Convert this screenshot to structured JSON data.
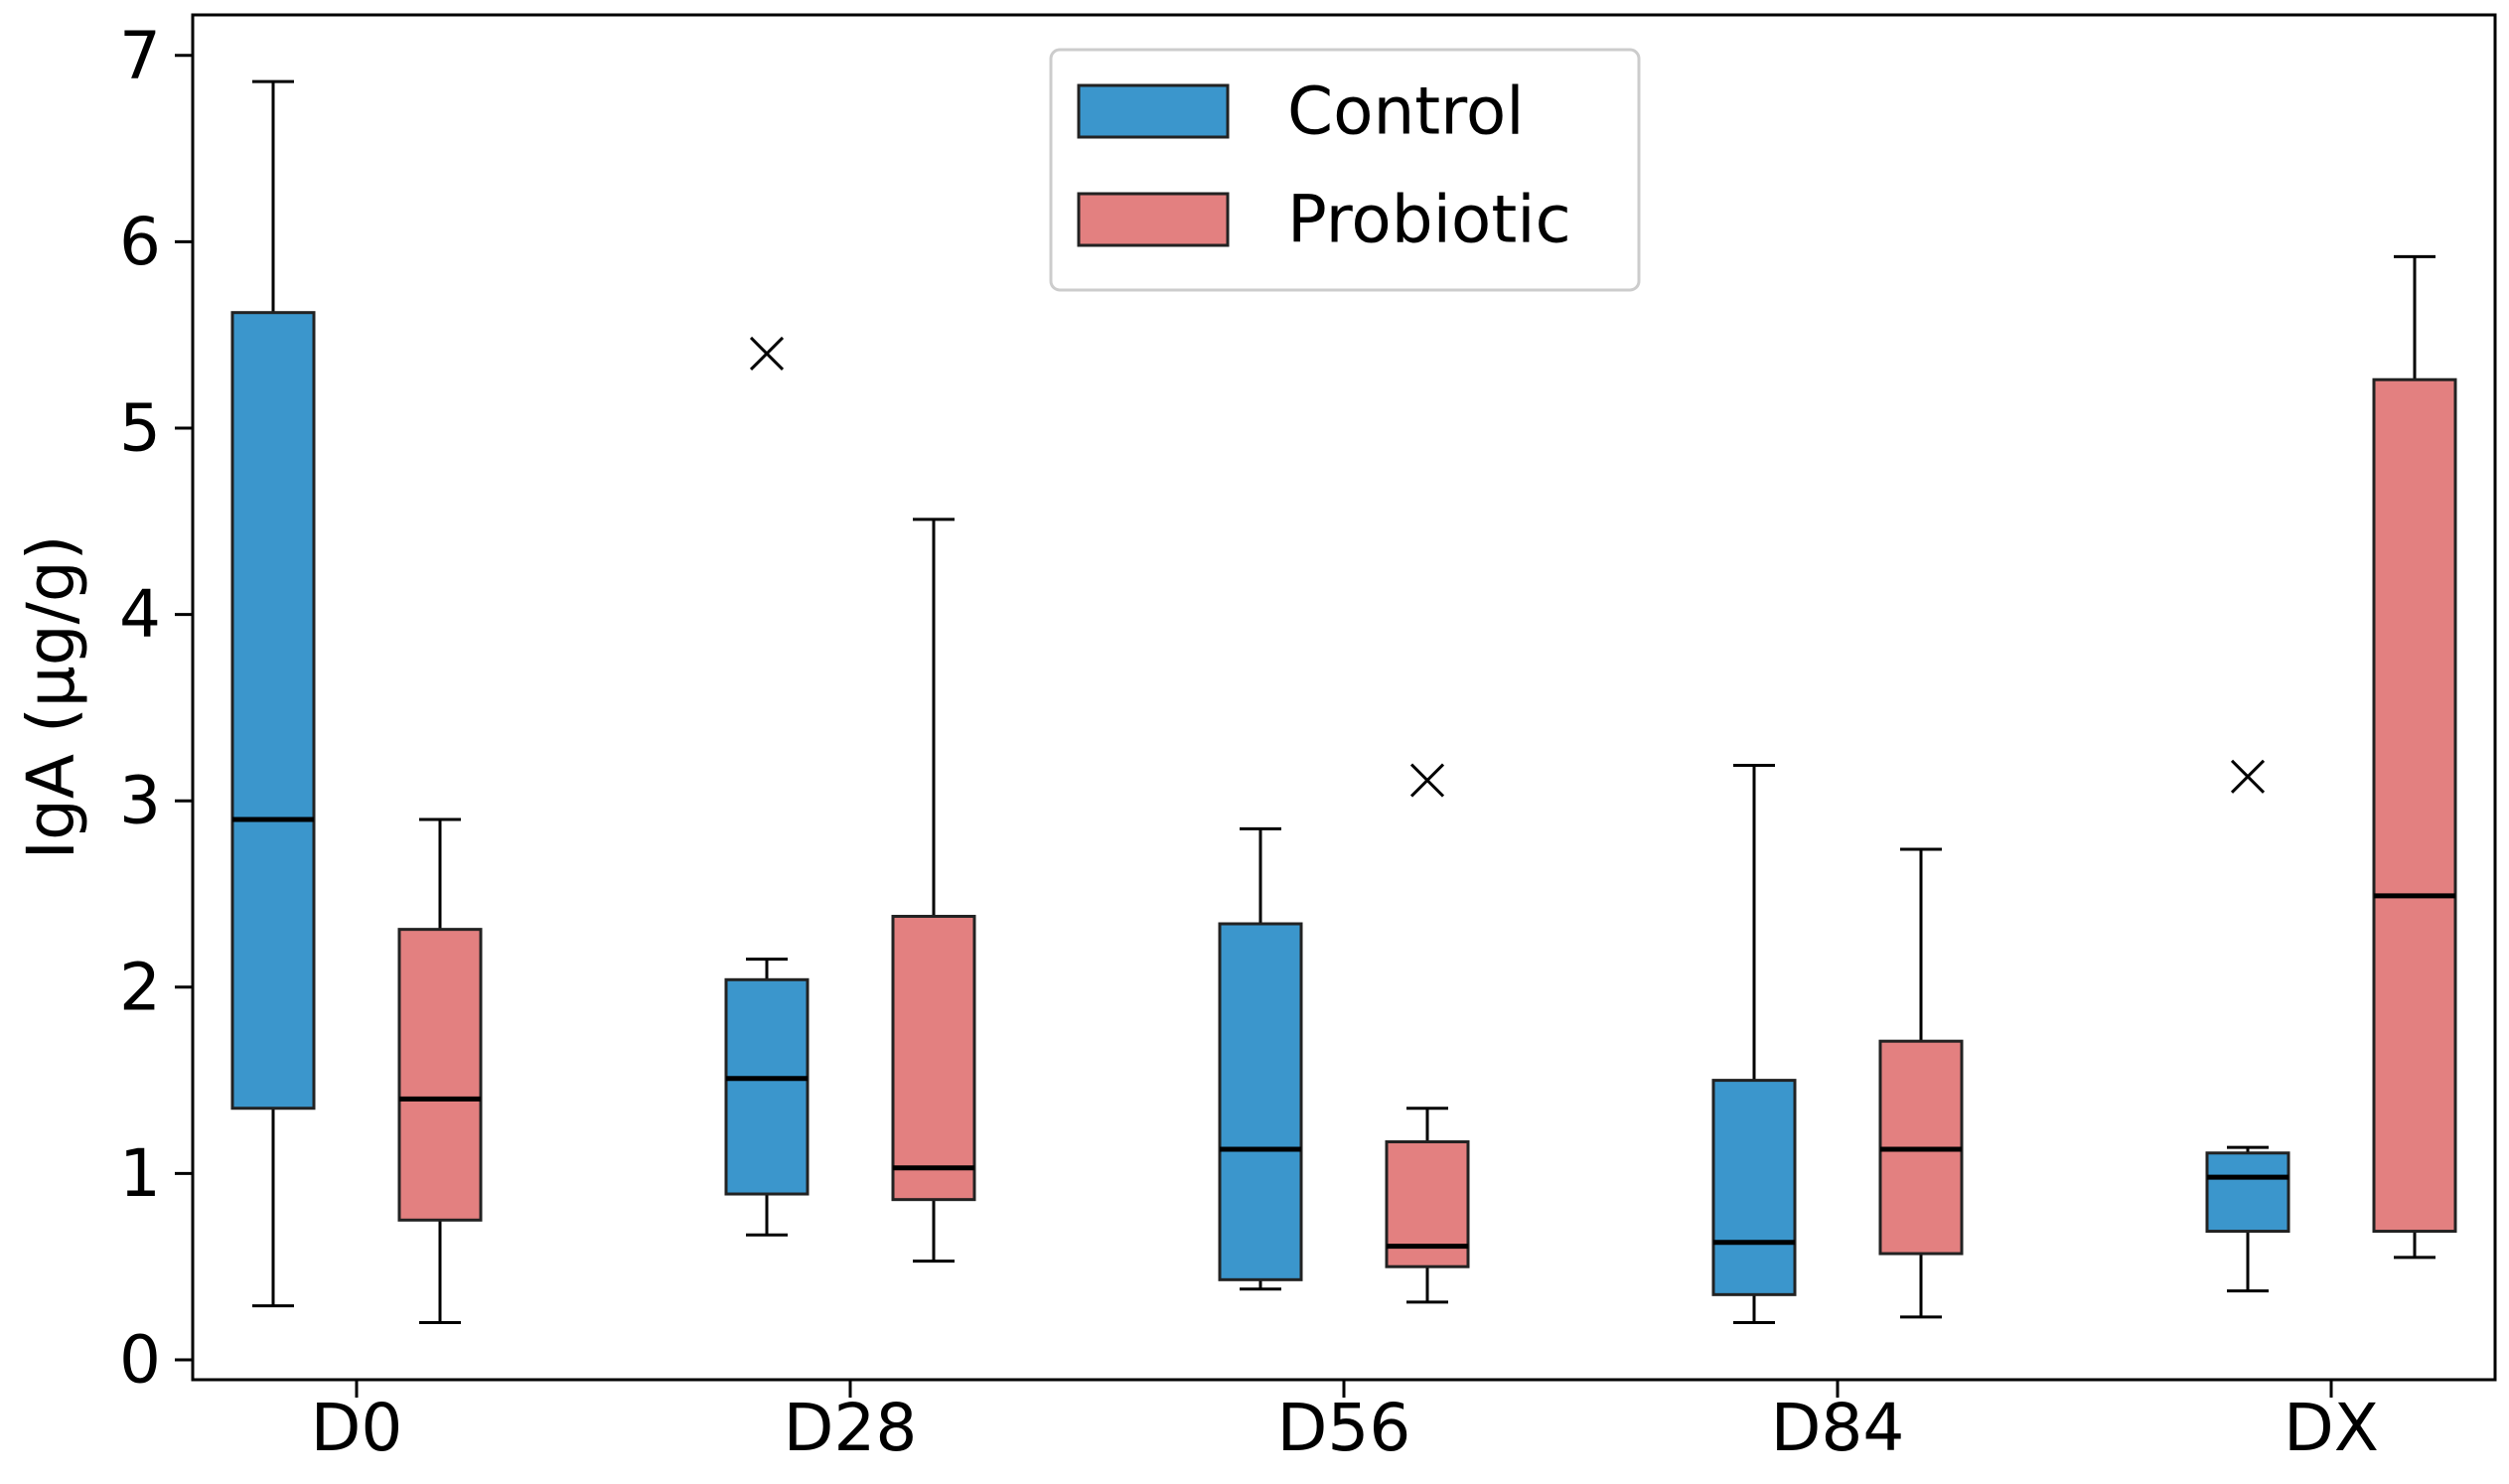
{
  "chart_data": {
    "type": "boxplot",
    "title": "",
    "xlabel": "",
    "ylabel": "IgA (μg/g)",
    "ylim": [
      -0.15,
      7.2
    ],
    "yticks": [
      0,
      1,
      2,
      3,
      4,
      5,
      6,
      7
    ],
    "categories": [
      "D0",
      "D28",
      "D56",
      "D84",
      "DX"
    ],
    "legend": {
      "position": "top-center",
      "entries": [
        "Control",
        "Probiotic"
      ]
    },
    "series": [
      {
        "name": "Control",
        "color": "#3b96cc",
        "boxes": [
          {
            "category": "D0",
            "whisker_low": 0.29,
            "q1": 1.35,
            "median": 2.9,
            "q3": 5.62,
            "whisker_high": 6.86,
            "outliers": []
          },
          {
            "category": "D28",
            "whisker_low": 0.67,
            "q1": 0.89,
            "median": 1.51,
            "q3": 2.04,
            "whisker_high": 2.15,
            "outliers": [
              5.4
            ]
          },
          {
            "category": "D56",
            "whisker_low": 0.38,
            "q1": 0.43,
            "median": 1.13,
            "q3": 2.34,
            "whisker_high": 2.85,
            "outliers": []
          },
          {
            "category": "D84",
            "whisker_low": 0.2,
            "q1": 0.35,
            "median": 0.63,
            "q3": 1.5,
            "whisker_high": 3.19,
            "outliers": []
          },
          {
            "category": "DX",
            "whisker_low": 0.37,
            "q1": 0.69,
            "median": 0.98,
            "q3": 1.11,
            "whisker_high": 1.14,
            "outliers": [
              3.13
            ]
          }
        ]
      },
      {
        "name": "Probiotic",
        "color": "#e38080",
        "boxes": [
          {
            "category": "D0",
            "whisker_low": 0.2,
            "q1": 0.75,
            "median": 1.4,
            "q3": 2.31,
            "whisker_high": 2.9,
            "outliers": []
          },
          {
            "category": "D28",
            "whisker_low": 0.53,
            "q1": 0.86,
            "median": 1.03,
            "q3": 2.38,
            "whisker_high": 4.51,
            "outliers": []
          },
          {
            "category": "D56",
            "whisker_low": 0.31,
            "q1": 0.5,
            "median": 0.61,
            "q3": 1.17,
            "whisker_high": 1.35,
            "outliers": [
              3.11
            ]
          },
          {
            "category": "D84",
            "whisker_low": 0.23,
            "q1": 0.57,
            "median": 1.13,
            "q3": 1.71,
            "whisker_high": 2.74,
            "outliers": []
          },
          {
            "category": "DX",
            "whisker_low": 0.55,
            "q1": 0.69,
            "median": 2.49,
            "q3": 5.26,
            "whisker_high": 5.92,
            "outliers": []
          }
        ]
      }
    ]
  }
}
